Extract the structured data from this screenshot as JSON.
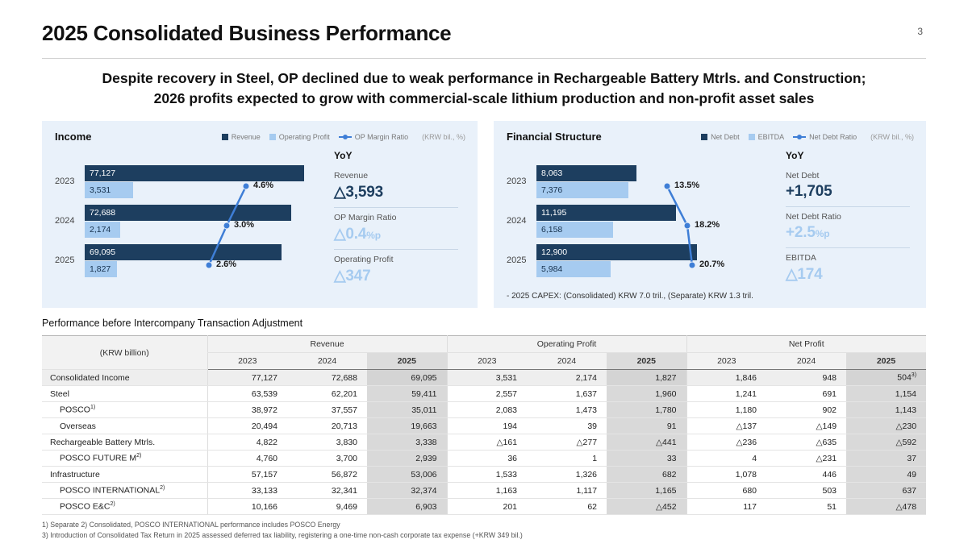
{
  "page": {
    "title": "2025 Consolidated Business Performance",
    "page_number": "3",
    "subtitle_line1": "Despite recovery in Steel, OP declined due to weak performance in Rechargeable Battery Mtrls. and Construction;",
    "subtitle_line2": "2026 profits expected to grow with commercial-scale lithium production and non-profit asset sales"
  },
  "colors": {
    "primary_bar": "#1d3e5f",
    "secondary_bar": "#a6cbf0",
    "line": "#3e7ed6",
    "panel_bg": "#e9f1fa",
    "col_2025_bg": "#d9d9d9"
  },
  "income_panel": {
    "title": "Income",
    "legend": {
      "revenue": "Revenue",
      "operating_profit": "Operating Profit",
      "op_margin_ratio": "OP Margin Ratio",
      "unit": "(KRW bil., %)"
    },
    "yoy": {
      "title": "YoY",
      "items": [
        {
          "label": "Revenue",
          "value": "△3,593",
          "suffix": "",
          "tone": "navy"
        },
        {
          "label": "OP Margin Ratio",
          "value": "△0.4",
          "suffix": "%p",
          "tone": "light"
        },
        {
          "label": "Operating Profit",
          "value": "△347",
          "suffix": "",
          "tone": "light"
        }
      ]
    }
  },
  "fs_panel": {
    "title": "Financial Structure",
    "legend": {
      "net_debt": "Net Debt",
      "ebitda": "EBITDA",
      "net_debt_ratio": "Net Debt Ratio",
      "unit": "(KRW bil., %)"
    },
    "yoy": {
      "title": "YoY",
      "items": [
        {
          "label": "Net Debt",
          "value": "+1,705",
          "suffix": "",
          "tone": "navy"
        },
        {
          "label": "Net Debt Ratio",
          "value": "+2.5",
          "suffix": "%p",
          "tone": "light"
        },
        {
          "label": "EBITDA",
          "value": "△174",
          "suffix": "",
          "tone": "light"
        }
      ]
    },
    "capex_note": "- 2025 CAPEX: (Consolidated) KRW 7.0 tril., (Separate) KRW 1.3 tril."
  },
  "chart_data": [
    {
      "type": "bar",
      "orientation": "horizontal",
      "title": "Income",
      "unit": "KRW bil., %",
      "legend_position": "top-right",
      "categories": [
        "2023",
        "2024",
        "2025"
      ],
      "series": [
        {
          "name": "Revenue",
          "type": "bar",
          "values": [
            77127,
            72688,
            69095
          ]
        },
        {
          "name": "Operating Profit",
          "type": "bar",
          "values": [
            3531,
            2174,
            1827
          ]
        },
        {
          "name": "OP Margin Ratio",
          "type": "line",
          "unit": "%",
          "values": [
            4.6,
            3.0,
            2.6
          ]
        }
      ]
    },
    {
      "type": "bar",
      "orientation": "horizontal",
      "title": "Financial Structure",
      "unit": "KRW bil., %",
      "legend_position": "top-right",
      "categories": [
        "2023",
        "2024",
        "2025"
      ],
      "series": [
        {
          "name": "Net Debt",
          "type": "bar",
          "values": [
            8063,
            11195,
            12900
          ]
        },
        {
          "name": "EBITDA",
          "type": "bar",
          "values": [
            7376,
            6158,
            5984
          ]
        },
        {
          "name": "Net Debt Ratio",
          "type": "line",
          "unit": "%",
          "values": [
            13.5,
            18.2,
            20.7
          ]
        }
      ]
    }
  ],
  "table": {
    "section_title": "Performance before Intercompany Transaction Adjustment",
    "unit_label": "(KRW billion)",
    "groups": [
      "Revenue",
      "Operating Profit",
      "Net Profit"
    ],
    "years": [
      "2023",
      "2024",
      "2025"
    ],
    "rows": [
      {
        "label": "Consolidated Income",
        "sup": "",
        "indent": false,
        "highlight": true,
        "last_cell_sup": "3)",
        "values": [
          "77,127",
          "72,688",
          "69,095",
          "3,531",
          "2,174",
          "1,827",
          "1,846",
          "948",
          "504"
        ]
      },
      {
        "label": "Steel",
        "sup": "",
        "indent": false,
        "highlight": false,
        "values": [
          "63,539",
          "62,201",
          "59,411",
          "2,557",
          "1,637",
          "1,960",
          "1,241",
          "691",
          "1,154"
        ]
      },
      {
        "label": "POSCO",
        "sup": "1)",
        "indent": true,
        "highlight": false,
        "values": [
          "38,972",
          "37,557",
          "35,011",
          "2,083",
          "1,473",
          "1,780",
          "1,180",
          "902",
          "1,143"
        ]
      },
      {
        "label": "Overseas",
        "sup": "",
        "indent": true,
        "highlight": false,
        "values": [
          "20,494",
          "20,713",
          "19,663",
          "194",
          "39",
          "91",
          "△137",
          "△149",
          "△230"
        ]
      },
      {
        "label": "Rechargeable Battery Mtrls.",
        "sup": "",
        "indent": false,
        "highlight": false,
        "values": [
          "4,822",
          "3,830",
          "3,338",
          "△161",
          "△277",
          "△441",
          "△236",
          "△635",
          "△592"
        ]
      },
      {
        "label": "POSCO FUTURE M",
        "sup": "2)",
        "indent": true,
        "highlight": false,
        "values": [
          "4,760",
          "3,700",
          "2,939",
          "36",
          "1",
          "33",
          "4",
          "△231",
          "37"
        ]
      },
      {
        "label": "Infrastructure",
        "sup": "",
        "indent": false,
        "highlight": false,
        "values": [
          "57,157",
          "56,872",
          "53,006",
          "1,533",
          "1,326",
          "682",
          "1,078",
          "446",
          "49"
        ]
      },
      {
        "label": "POSCO INTERNATIONAL",
        "sup": "2)",
        "indent": true,
        "highlight": false,
        "values": [
          "33,133",
          "32,341",
          "32,374",
          "1,163",
          "1,117",
          "1,165",
          "680",
          "503",
          "637"
        ]
      },
      {
        "label": "POSCO E&C",
        "sup": "2)",
        "indent": true,
        "highlight": false,
        "values": [
          "10,166",
          "9,469",
          "6,903",
          "201",
          "62",
          "△452",
          "117",
          "51",
          "△478"
        ]
      }
    ]
  },
  "footnotes": [
    "1) Separate 2) Consolidated, POSCO INTERNATIONAL performance includes POSCO Energy",
    "3) Introduction of Consolidated Tax Return in 2025 assessed deferred tax liability, registering a one-time non-cash corporate tax expense (+KRW 349 bil.)"
  ]
}
